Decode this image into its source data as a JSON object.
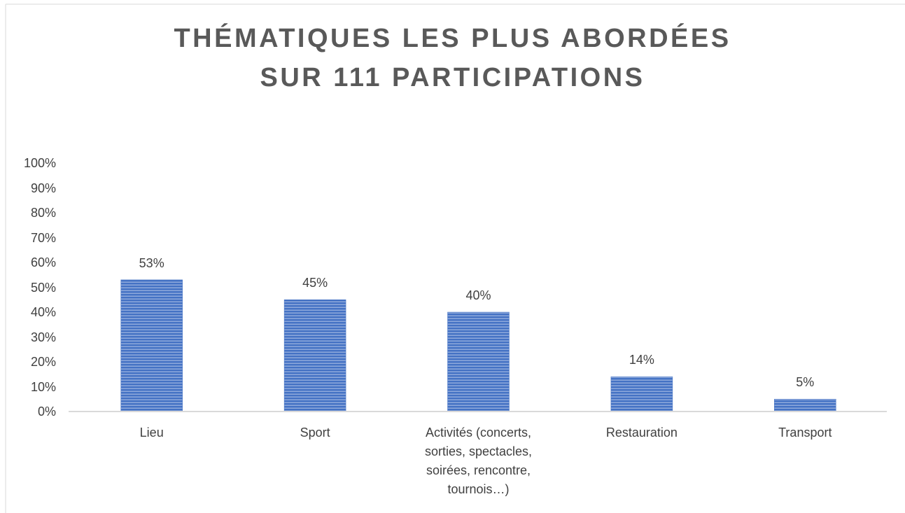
{
  "chart_data": {
    "type": "bar",
    "title": [
      "THÉMATIQUES LES PLUS ABORDÉES",
      "SUR 111 PARTICIPATIONS"
    ],
    "categories": [
      "Lieu",
      "Sport",
      "Activités (concerts, sorties, spectacles, soirées, rencontre, tournois…)",
      "Restauration",
      "Transport"
    ],
    "values": [
      53,
      45,
      40,
      14,
      5
    ],
    "value_labels": [
      "53%",
      "45%",
      "40%",
      "14%",
      "5%"
    ],
    "color": "#4472c4",
    "ylim": [
      0,
      100
    ],
    "yticks": [
      {
        "value": 0,
        "label": "0%"
      },
      {
        "value": 10,
        "label": "10%"
      },
      {
        "value": 20,
        "label": "20%"
      },
      {
        "value": 30,
        "label": "30%"
      },
      {
        "value": 40,
        "label": "40%"
      },
      {
        "value": 50,
        "label": "50%"
      },
      {
        "value": 60,
        "label": "60%"
      },
      {
        "value": 70,
        "label": "70%"
      },
      {
        "value": 80,
        "label": "80%"
      },
      {
        "value": 90,
        "label": "90%"
      },
      {
        "value": 100,
        "label": "100%"
      }
    ],
    "grid": false
  }
}
